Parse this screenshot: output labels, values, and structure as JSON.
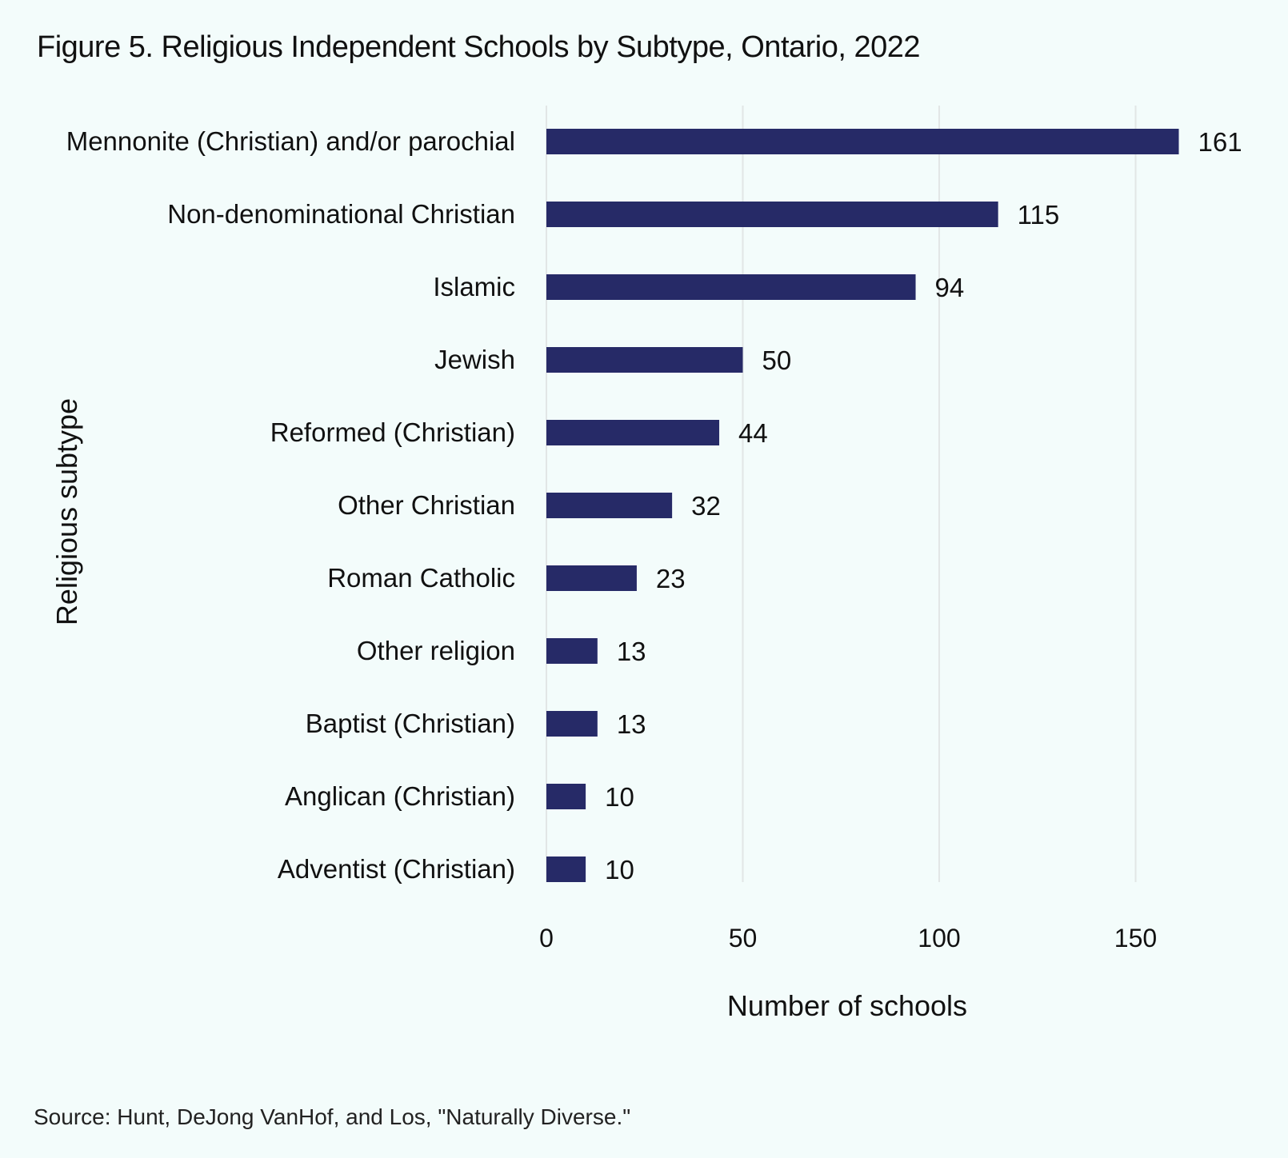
{
  "chart_data": {
    "type": "bar",
    "orientation": "horizontal",
    "title": "Figure 5. Religious Independent Schools by Subtype, Ontario, 2022",
    "xlabel": "Number of schools",
    "ylabel": "Religious subtype",
    "categories": [
      "Mennonite (Christian) and/or parochial",
      "Non-denominational Christian",
      "Islamic",
      "Jewish",
      "Reformed (Christian)",
      "Other Christian",
      "Roman Catholic",
      "Other religion",
      "Baptist (Christian)",
      "Anglican (Christian)",
      "Adventist (Christian)"
    ],
    "values": [
      161,
      115,
      94,
      50,
      44,
      32,
      23,
      13,
      13,
      10,
      10
    ],
    "xlim": [
      0,
      170
    ],
    "xticks": [
      0,
      50,
      100,
      150
    ],
    "grid": "vertical",
    "data_labels": true,
    "bar_color": "#262a67",
    "grid_color": "#e2e6e6",
    "source": "Source: Hunt, DeJong VanHof, and Los, \"Naturally Diverse.\""
  }
}
